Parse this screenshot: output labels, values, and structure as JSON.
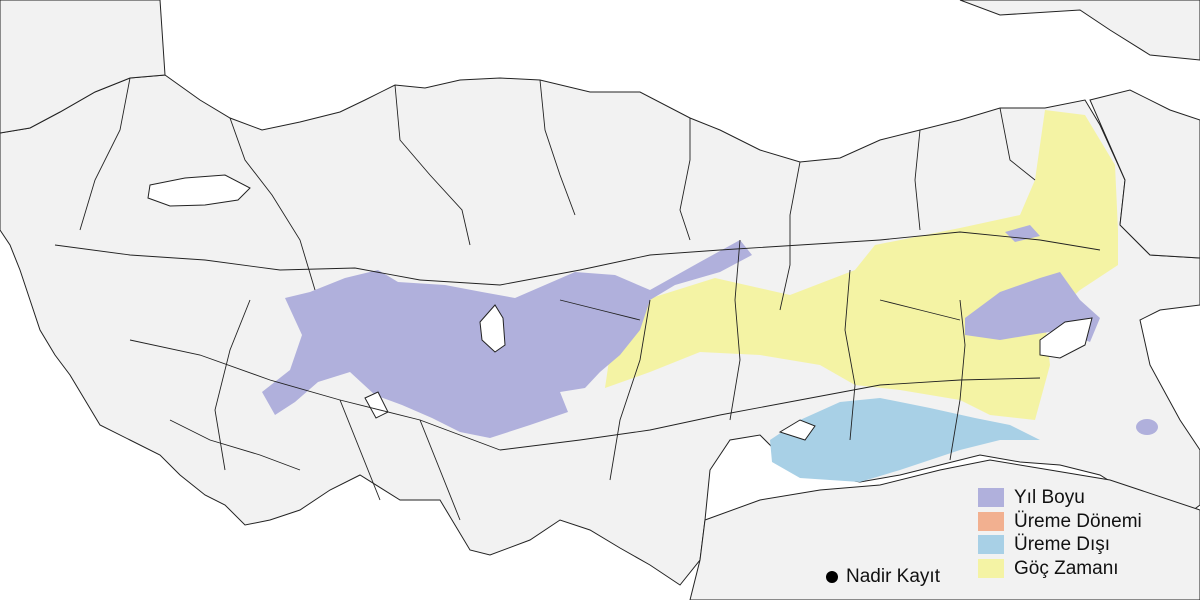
{
  "map": {
    "colors": {
      "land": "#f2f2f2",
      "border": "#222222",
      "sea": "#ffffff",
      "year_round": "#b0b0dc",
      "breeding": "#f2b090",
      "non_breeding": "#a8d0e6",
      "migration": "#f4f3a4"
    }
  },
  "legend": {
    "items": [
      {
        "label": "Yıl Boyu",
        "color": "#b0b0dc"
      },
      {
        "label": "Üreme Dönemi",
        "color": "#f2b090"
      },
      {
        "label": "Üreme Dışı",
        "color": "#a8d0e6"
      },
      {
        "label": "Göç Zamanı",
        "color": "#f4f3a4"
      }
    ],
    "rare_record": {
      "label": "Nadir Kayıt",
      "icon": "black-dot-icon"
    }
  }
}
